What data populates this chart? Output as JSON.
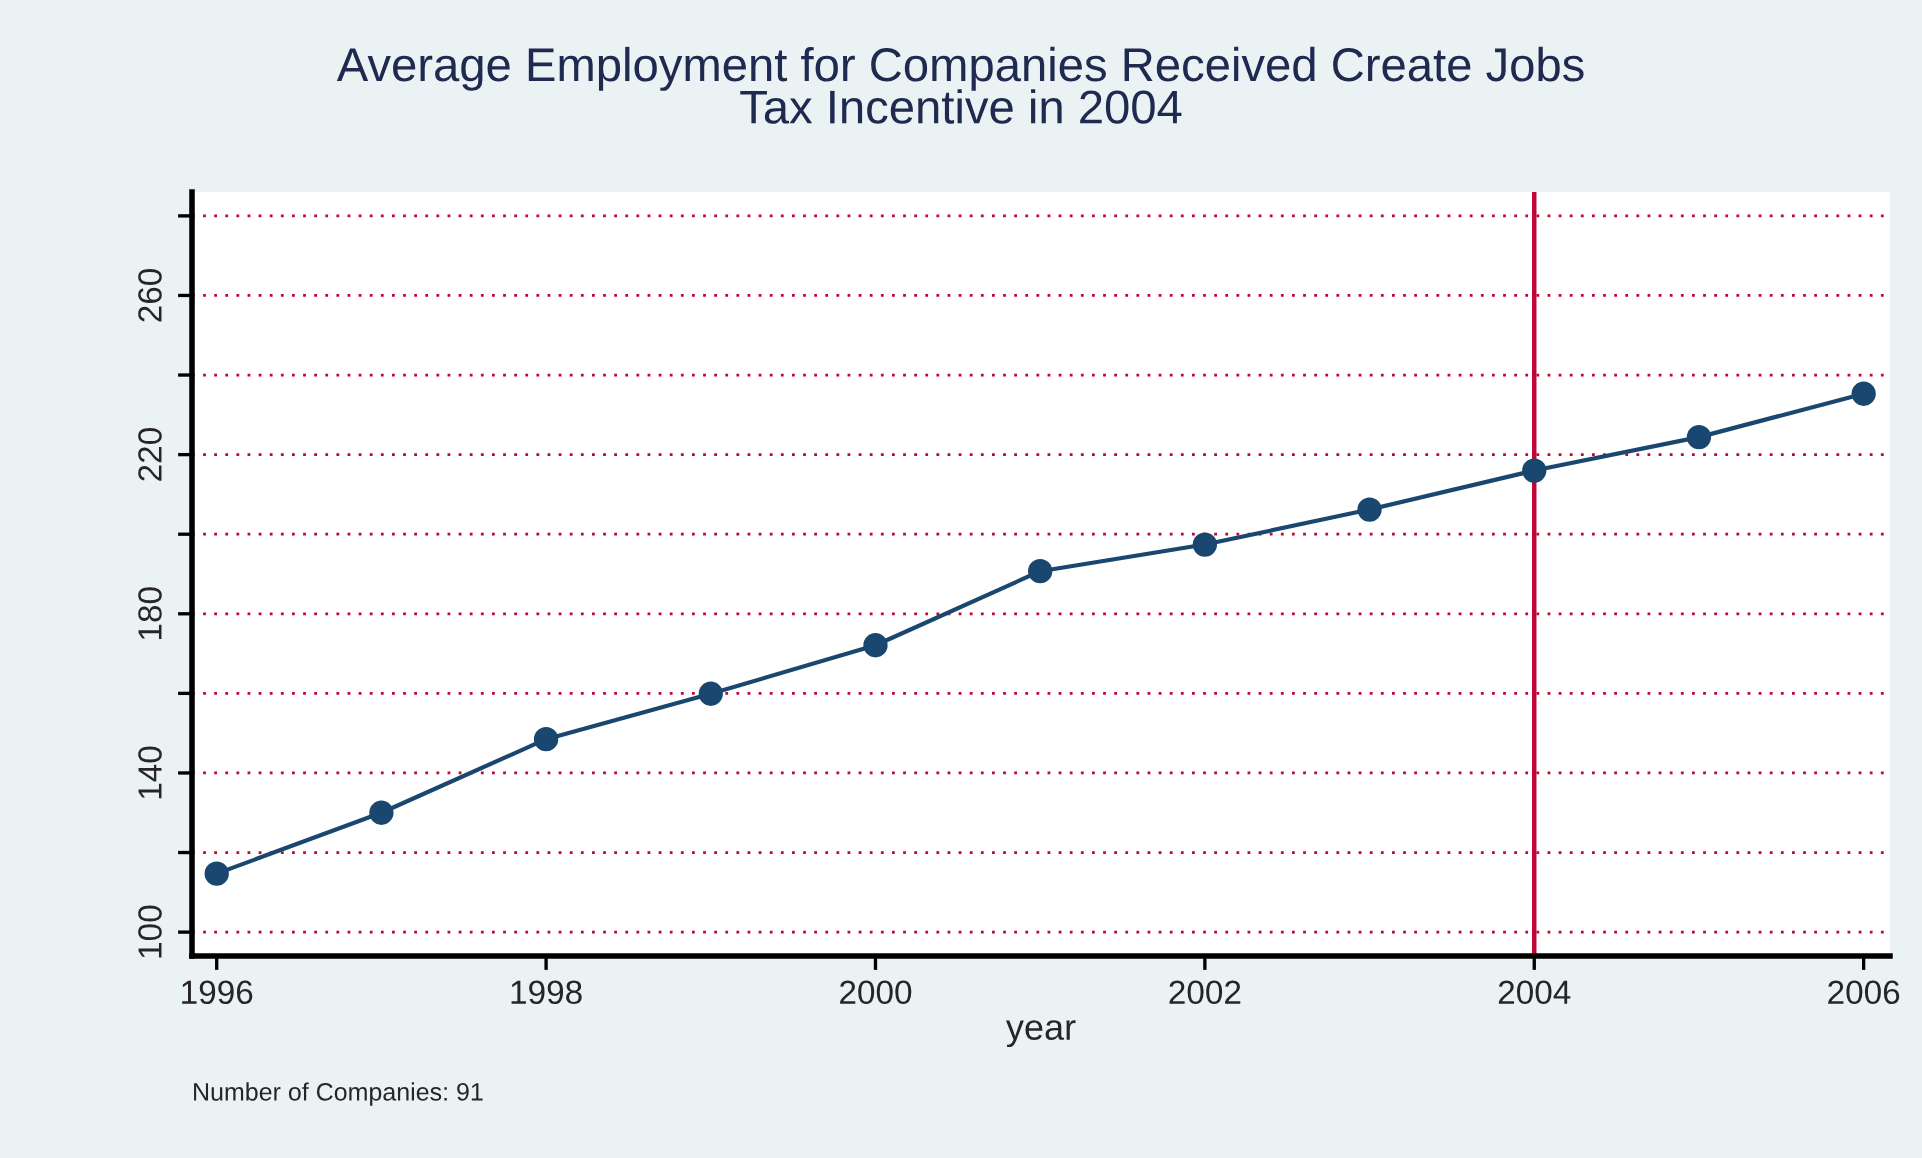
{
  "chart_data": {
    "type": "line",
    "title": "Average Employment for Companies Received Create Jobs\nTax Incentive in 2004",
    "xlabel": "year",
    "x": [
      1996,
      1997,
      1998,
      1999,
      2000,
      2001,
      2002,
      2003,
      2004,
      2005,
      2006
    ],
    "series": [
      {
        "color": "#1a476f",
        "values": [
          114.7,
          130.0,
          148.5,
          159.9,
          172.1,
          190.7,
          197.4,
          206.2,
          216.0,
          224.4,
          235.3
        ]
      }
    ],
    "xlim": [
      1995.85,
      2006.16
    ],
    "xticks": [
      1996,
      1998,
      2000,
      2002,
      2004,
      2006
    ],
    "ylim": [
      94,
      286
    ],
    "yticks": [
      100,
      {
        "value": 120,
        "label": null
      },
      140,
      {
        "value": 160,
        "label": null
      },
      180,
      {
        "value": 200,
        "label": null
      },
      220,
      {
        "value": 240,
        "label": null
      },
      260,
      {
        "value": 280,
        "label": null
      }
    ],
    "grid": "y",
    "marker": "circle",
    "line_style": "solid",
    "ref_lines": [
      {
        "axis": "x",
        "value": 2004,
        "color": "#c10534"
      }
    ],
    "annotations": [
      "Number of Companies: 91"
    ]
  }
}
